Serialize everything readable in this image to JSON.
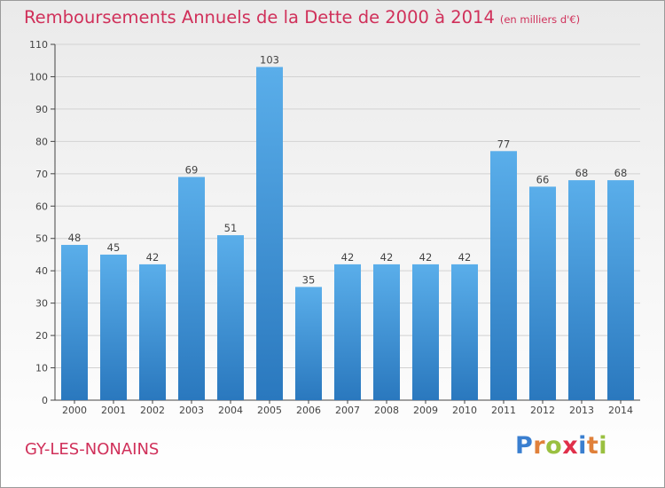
{
  "title": "Remboursements Annuels de la Dette de 2000 à 2014",
  "unit": "(en milliers d'€)",
  "commune": "GY-LES-NONAINS",
  "logo": {
    "text": "Proxiti",
    "colors": [
      "#3a7fd0",
      "#e0803a",
      "#9ac040",
      "#e0304a",
      "#3a7fd0",
      "#e0803a",
      "#9ac040"
    ]
  },
  "colors": {
    "title": "#d0305a",
    "bar_light": "#5aaeea",
    "bar_dark": "#2a78be",
    "grid": "#d2d2d2",
    "axis": "#444444",
    "label": "#444444"
  },
  "chart_data": {
    "type": "bar",
    "categories": [
      "2000",
      "2001",
      "2002",
      "2003",
      "2004",
      "2005",
      "2006",
      "2007",
      "2008",
      "2009",
      "2010",
      "2011",
      "2012",
      "2013",
      "2014"
    ],
    "values": [
      48,
      45,
      42,
      69,
      51,
      103,
      35,
      42,
      42,
      42,
      42,
      77,
      66,
      68,
      68
    ],
    "ylim": [
      0,
      110
    ],
    "yticks": [
      0,
      10,
      20,
      30,
      40,
      50,
      60,
      70,
      80,
      90,
      100,
      110
    ],
    "grid": true,
    "data_labels": true
  }
}
